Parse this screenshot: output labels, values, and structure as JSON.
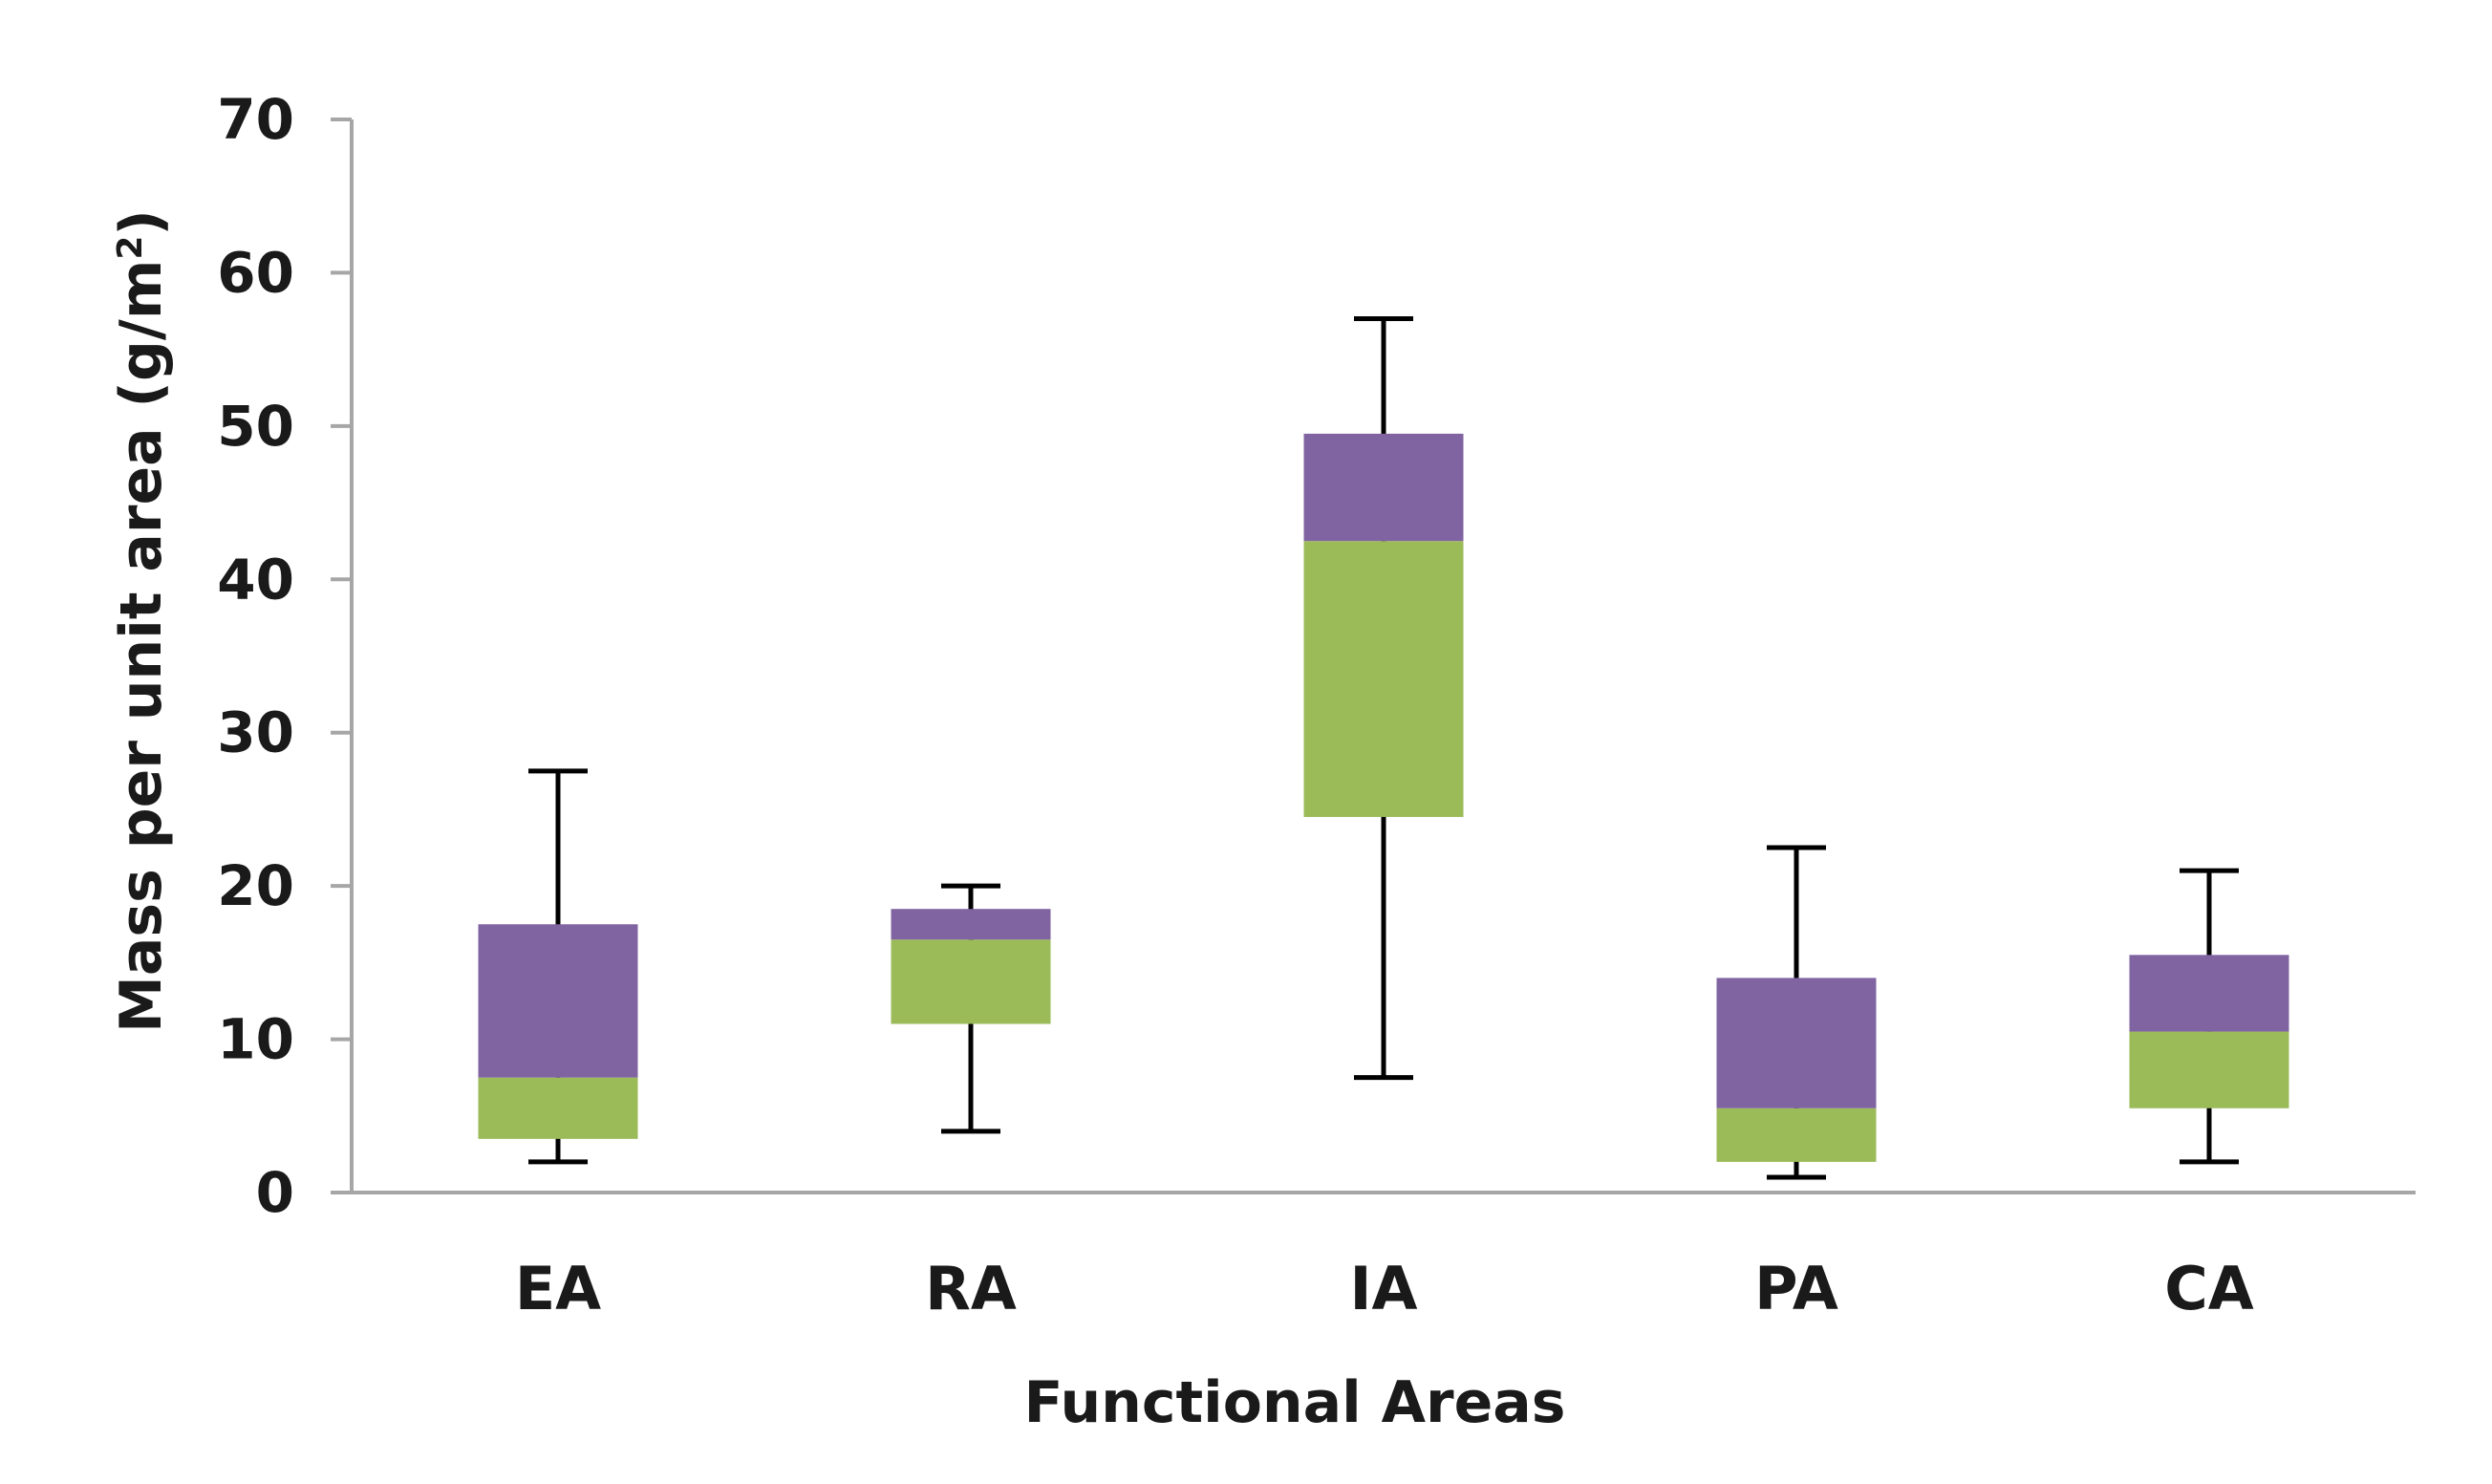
{
  "chart_data": {
    "type": "boxplot",
    "title": "",
    "xlabel": "Functional Areas",
    "ylabel": {
      "base": "Mass per unit area (g/m",
      "superscript": "2",
      "close": ")"
    },
    "ylim": [
      0,
      70
    ],
    "yticks": [
      0,
      10,
      20,
      30,
      40,
      50,
      60,
      70
    ],
    "grid": false,
    "colors": {
      "lower_box": "#9bbb59",
      "upper_box": "#8064a2",
      "whisker": "#000000",
      "axis": "#a6a6a6"
    },
    "categories": [
      "EA",
      "RA",
      "IA",
      "PA",
      "CA"
    ],
    "boxes": [
      {
        "name": "EA",
        "min": 2,
        "q1": 3.5,
        "median": 7.5,
        "q3": 17.5,
        "max": 27.5
      },
      {
        "name": "RA",
        "min": 4,
        "q1": 11,
        "median": 16.5,
        "q3": 18.5,
        "max": 20
      },
      {
        "name": "IA",
        "min": 7.5,
        "q1": 24.5,
        "median": 42.5,
        "q3": 49.5,
        "max": 57
      },
      {
        "name": "PA",
        "min": 1,
        "q1": 2,
        "median": 5.5,
        "q3": 14,
        "max": 22.5
      },
      {
        "name": "CA",
        "min": 2,
        "q1": 5.5,
        "median": 10.5,
        "q3": 15.5,
        "max": 21
      }
    ]
  }
}
